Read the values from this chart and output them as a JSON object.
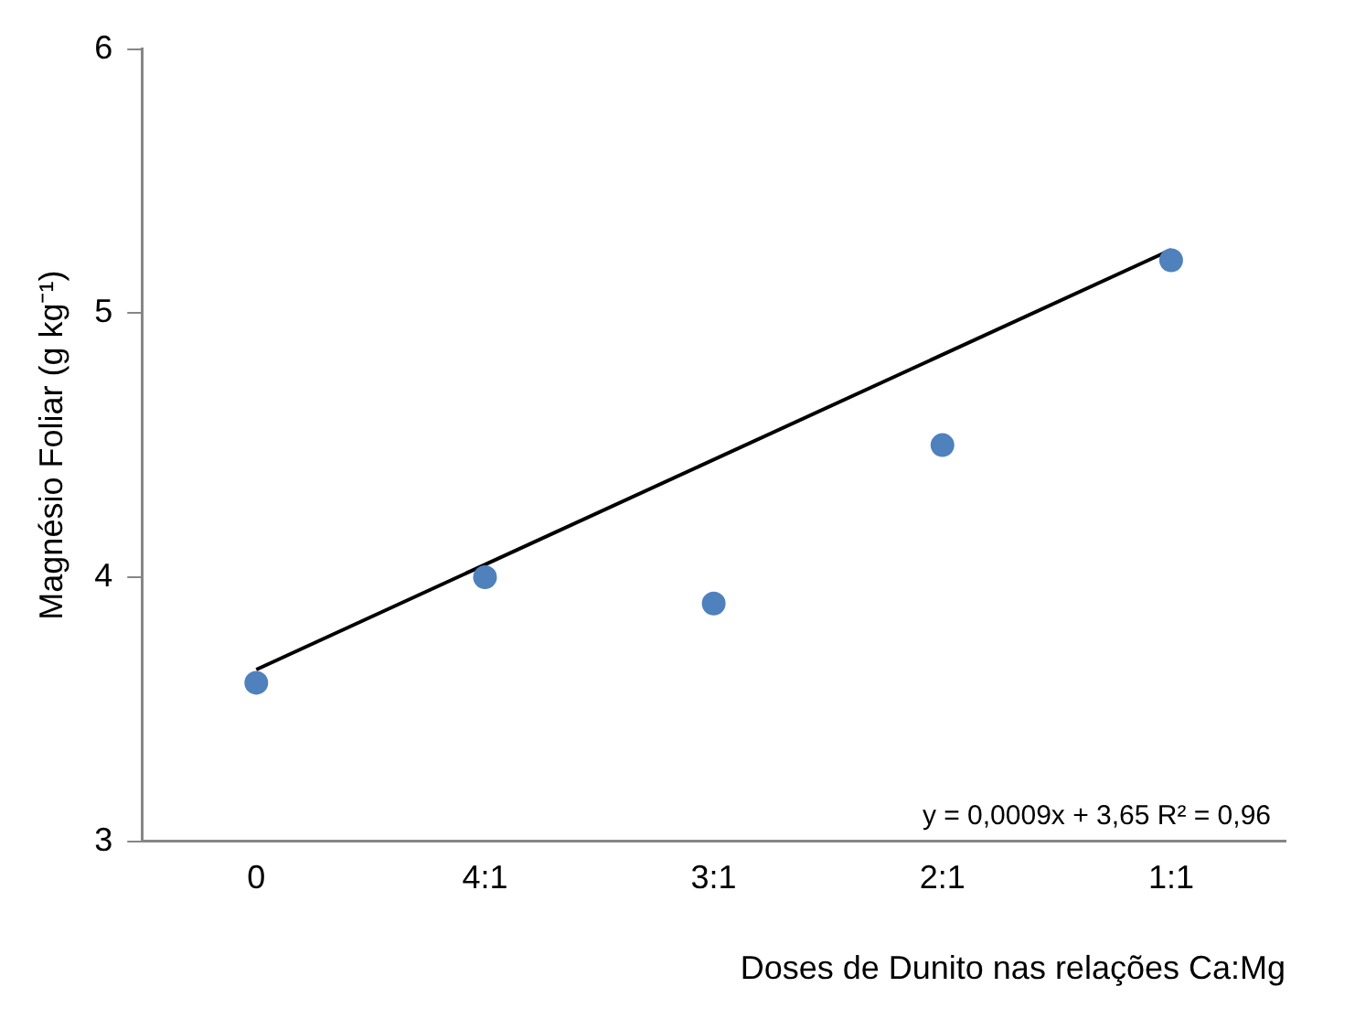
{
  "chart_data": {
    "type": "scatter",
    "xlabel": "Doses de Dunito nas relações Ca:Mg",
    "ylabel": "Magnésio Foliar (g kg⁻¹)",
    "categories": [
      "0",
      "4:1",
      "3:1",
      "2:1",
      "1:1"
    ],
    "ylim": [
      3,
      6
    ],
    "yticks": [
      3,
      4,
      5,
      6
    ],
    "grid": false,
    "legend": false,
    "series": [
      {
        "color": "#4f81bd",
        "values": [
          3.6,
          4.0,
          3.9,
          4.5,
          5.2
        ],
        "marker": "circle"
      },
      {
        "type": "line",
        "color": "#000000",
        "values": [
          3.65,
          null,
          null,
          null,
          5.24
        ],
        "line_style": "solid",
        "marker": "none"
      }
    ],
    "annotations": [
      "y = 0,0009x + 3,65 R² = 0,96"
    ]
  }
}
